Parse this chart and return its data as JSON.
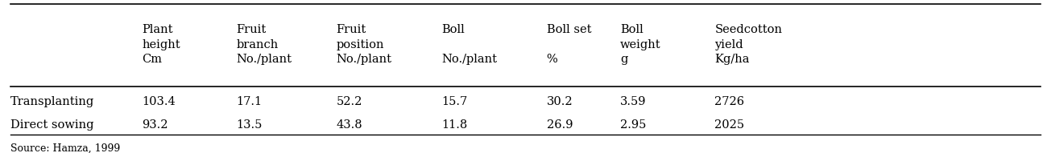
{
  "col_headers": [
    "Plant\nheight\nCm",
    "Fruit\nbranch\nNo./plant",
    "Fruit\nposition\nNo./plant",
    "Boll\n\nNo./plant",
    "Boll set\n\n%",
    "Boll\nweight\ng",
    "Seedcotton\nyield\nKg/ha"
  ],
  "row_labels": [
    "Transplanting",
    "Direct sowing"
  ],
  "row_data": [
    [
      "103.4",
      "17.1",
      "52.2",
      "15.7",
      "30.2",
      "3.59",
      "2726"
    ],
    [
      "93.2",
      "13.5",
      "43.8",
      "11.8",
      "26.9",
      "2.95",
      "2025"
    ]
  ],
  "source_text": "Source: Hamza, 1999",
  "background_color": "#ffffff",
  "text_color": "#000000",
  "font_size": 10.5
}
